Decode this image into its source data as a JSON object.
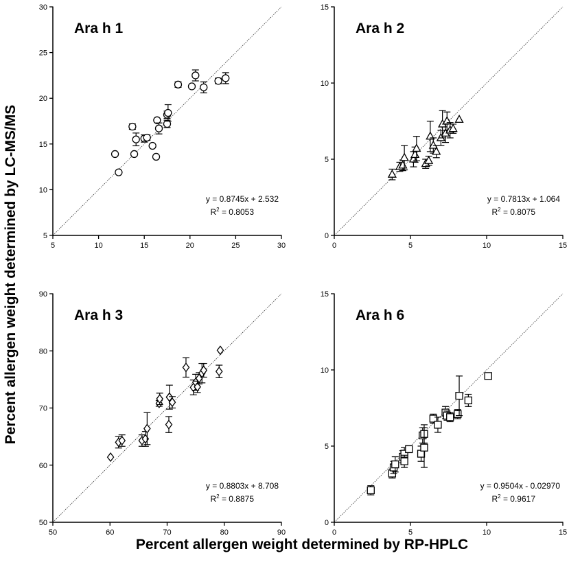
{
  "figure": {
    "xlabel": "Percent allergen weight determined by RP-HPLC",
    "ylabel": "Percent allergen weight determined by LC-MS/MS"
  },
  "chart_data": [
    {
      "type": "scatter",
      "title": "Ara h 1",
      "marker": "circle",
      "xlim": [
        5,
        30
      ],
      "ylim": [
        5,
        30
      ],
      "xticks": [
        5,
        10,
        15,
        20,
        25,
        30
      ],
      "yticks": [
        5,
        10,
        15,
        20,
        25,
        30
      ],
      "equation": "y = 0.8745x + 2.532",
      "r2_label": "R",
      "r2_sup": "2",
      "r2_value": " = 0.8053",
      "points": [
        {
          "x": 11.8,
          "y": 13.9,
          "err": 0
        },
        {
          "x": 12.2,
          "y": 11.9,
          "err": 0
        },
        {
          "x": 13.7,
          "y": 16.9,
          "err": 0.3
        },
        {
          "x": 13.9,
          "y": 13.9,
          "err": 0
        },
        {
          "x": 14.1,
          "y": 15.5,
          "err": 0.7
        },
        {
          "x": 15.0,
          "y": 15.6,
          "err": 0.4
        },
        {
          "x": 15.3,
          "y": 15.7,
          "err": 0.3
        },
        {
          "x": 15.9,
          "y": 14.8,
          "err": 0
        },
        {
          "x": 16.3,
          "y": 13.6,
          "err": 0
        },
        {
          "x": 16.4,
          "y": 17.6,
          "err": 0
        },
        {
          "x": 16.6,
          "y": 16.7,
          "err": 0.6
        },
        {
          "x": 17.5,
          "y": 17.2,
          "err": 0.4
        },
        {
          "x": 17.5,
          "y": 18.2,
          "err": 0.4
        },
        {
          "x": 17.6,
          "y": 18.4,
          "err": 0.9
        },
        {
          "x": 18.7,
          "y": 21.5,
          "err": 0.3
        },
        {
          "x": 20.2,
          "y": 21.3,
          "err": 0
        },
        {
          "x": 20.6,
          "y": 22.5,
          "err": 0.6
        },
        {
          "x": 21.5,
          "y": 21.2,
          "err": 0.6
        },
        {
          "x": 23.1,
          "y": 21.9,
          "err": 0.3
        },
        {
          "x": 23.9,
          "y": 22.2,
          "err": 0.6
        }
      ]
    },
    {
      "type": "scatter",
      "title": "Ara h 2",
      "marker": "triangle",
      "xlim": [
        0,
        15
      ],
      "ylim": [
        0,
        15
      ],
      "xticks": [
        0,
        5,
        10,
        15
      ],
      "yticks": [
        0,
        5,
        10,
        15
      ],
      "equation": "y = 0.7813x + 1.064",
      "r2_label": "R",
      "r2_sup": "2",
      "r2_value": " = 0.8075",
      "points": [
        {
          "x": 3.8,
          "y": 4.0,
          "err": 0.35
        },
        {
          "x": 4.3,
          "y": 4.5,
          "err": 0.3
        },
        {
          "x": 4.5,
          "y": 4.6,
          "err": 0.35
        },
        {
          "x": 4.6,
          "y": 5.1,
          "err": 0.8
        },
        {
          "x": 5.2,
          "y": 5.0,
          "err": 0.5
        },
        {
          "x": 5.3,
          "y": 5.3,
          "err": 0.5
        },
        {
          "x": 5.4,
          "y": 5.7,
          "err": 0.8
        },
        {
          "x": 6.0,
          "y": 4.7,
          "err": 0.3
        },
        {
          "x": 6.2,
          "y": 4.9,
          "err": 0.3
        },
        {
          "x": 6.3,
          "y": 6.5,
          "err": 1.0
        },
        {
          "x": 6.5,
          "y": 5.9,
          "err": 0.5
        },
        {
          "x": 6.7,
          "y": 5.5,
          "err": 0.4
        },
        {
          "x": 7.0,
          "y": 6.4,
          "err": 0.5
        },
        {
          "x": 7.1,
          "y": 7.3,
          "err": 0.9
        },
        {
          "x": 7.3,
          "y": 6.7,
          "err": 0.6
        },
        {
          "x": 7.4,
          "y": 7.5,
          "err": 0.6
        },
        {
          "x": 7.6,
          "y": 6.9,
          "err": 0.5
        },
        {
          "x": 7.8,
          "y": 7.0,
          "err": 0.3
        },
        {
          "x": 8.2,
          "y": 7.6,
          "err": 0
        }
      ]
    },
    {
      "type": "scatter",
      "title": "Ara h 3",
      "marker": "diamond",
      "xlim": [
        50,
        90
      ],
      "ylim": [
        50,
        90
      ],
      "xticks": [
        50,
        60,
        70,
        80,
        90
      ],
      "yticks": [
        50,
        60,
        70,
        80,
        90
      ],
      "equation": "y = 0.8803x + 8.708",
      "r2_label": "R",
      "r2_sup": "2",
      "r2_value": " = 0.8875",
      "points": [
        {
          "x": 60.1,
          "y": 61.4,
          "err": 0
        },
        {
          "x": 61.5,
          "y": 64.0,
          "err": 1.0
        },
        {
          "x": 62.1,
          "y": 64.3,
          "err": 1.0
        },
        {
          "x": 65.6,
          "y": 64.3,
          "err": 1.0
        },
        {
          "x": 66.2,
          "y": 64.6,
          "err": 1.3
        },
        {
          "x": 66.5,
          "y": 66.4,
          "err": 2.8
        },
        {
          "x": 68.6,
          "y": 70.8,
          "err": 0.5
        },
        {
          "x": 68.7,
          "y": 71.6,
          "err": 1.0
        },
        {
          "x": 70.3,
          "y": 67.1,
          "err": 1.4
        },
        {
          "x": 70.4,
          "y": 71.9,
          "err": 2.1
        },
        {
          "x": 70.9,
          "y": 71.0,
          "err": 1.0
        },
        {
          "x": 73.3,
          "y": 77.1,
          "err": 1.7
        },
        {
          "x": 74.6,
          "y": 73.6,
          "err": 1.3
        },
        {
          "x": 75.0,
          "y": 74.5,
          "err": 1.4
        },
        {
          "x": 75.3,
          "y": 73.7,
          "err": 1.0
        },
        {
          "x": 75.6,
          "y": 75.2,
          "err": 1.0
        },
        {
          "x": 76.1,
          "y": 76.1,
          "err": 1.7
        },
        {
          "x": 76.4,
          "y": 76.6,
          "err": 1.2
        },
        {
          "x": 79.1,
          "y": 76.4,
          "err": 1.1
        },
        {
          "x": 79.3,
          "y": 80.1,
          "err": 0
        }
      ]
    },
    {
      "type": "scatter",
      "title": "Ara h 6",
      "marker": "square",
      "xlim": [
        0,
        15
      ],
      "ylim": [
        0,
        15
      ],
      "xticks": [
        0,
        5,
        10,
        15
      ],
      "yticks": [
        0,
        5,
        10,
        15
      ],
      "equation": "y = 0.9504x - 0.02970",
      "r2_label": "R",
      "r2_sup": "2",
      "r2_value": " = 0.9617",
      "points": [
        {
          "x": 2.4,
          "y": 2.1,
          "err": 0.3
        },
        {
          "x": 3.8,
          "y": 3.2,
          "err": 0.3
        },
        {
          "x": 3.9,
          "y": 3.6,
          "err": 0.4
        },
        {
          "x": 4.0,
          "y": 3.8,
          "err": 0.5
        },
        {
          "x": 4.5,
          "y": 4.3,
          "err": 0.4
        },
        {
          "x": 4.6,
          "y": 4.5,
          "err": 0.4
        },
        {
          "x": 4.6,
          "y": 4.0,
          "err": 0.4
        },
        {
          "x": 4.9,
          "y": 4.8,
          "err": 0
        },
        {
          "x": 5.7,
          "y": 4.5,
          "err": 0.5
        },
        {
          "x": 5.8,
          "y": 5.7,
          "err": 0.5
        },
        {
          "x": 5.9,
          "y": 5.8,
          "err": 0.6
        },
        {
          "x": 5.9,
          "y": 4.9,
          "err": 1.3
        },
        {
          "x": 6.5,
          "y": 6.8,
          "err": 0.3
        },
        {
          "x": 6.8,
          "y": 6.4,
          "err": 0.5
        },
        {
          "x": 7.3,
          "y": 7.2,
          "err": 0.4
        },
        {
          "x": 7.4,
          "y": 7.0,
          "err": 0.3
        },
        {
          "x": 7.6,
          "y": 6.9,
          "err": 0.3
        },
        {
          "x": 8.1,
          "y": 7.1,
          "err": 0.3
        },
        {
          "x": 8.2,
          "y": 8.3,
          "err": 1.3
        },
        {
          "x": 8.8,
          "y": 8.0,
          "err": 0.4
        },
        {
          "x": 10.1,
          "y": 9.6,
          "err": 0.2
        }
      ]
    }
  ]
}
